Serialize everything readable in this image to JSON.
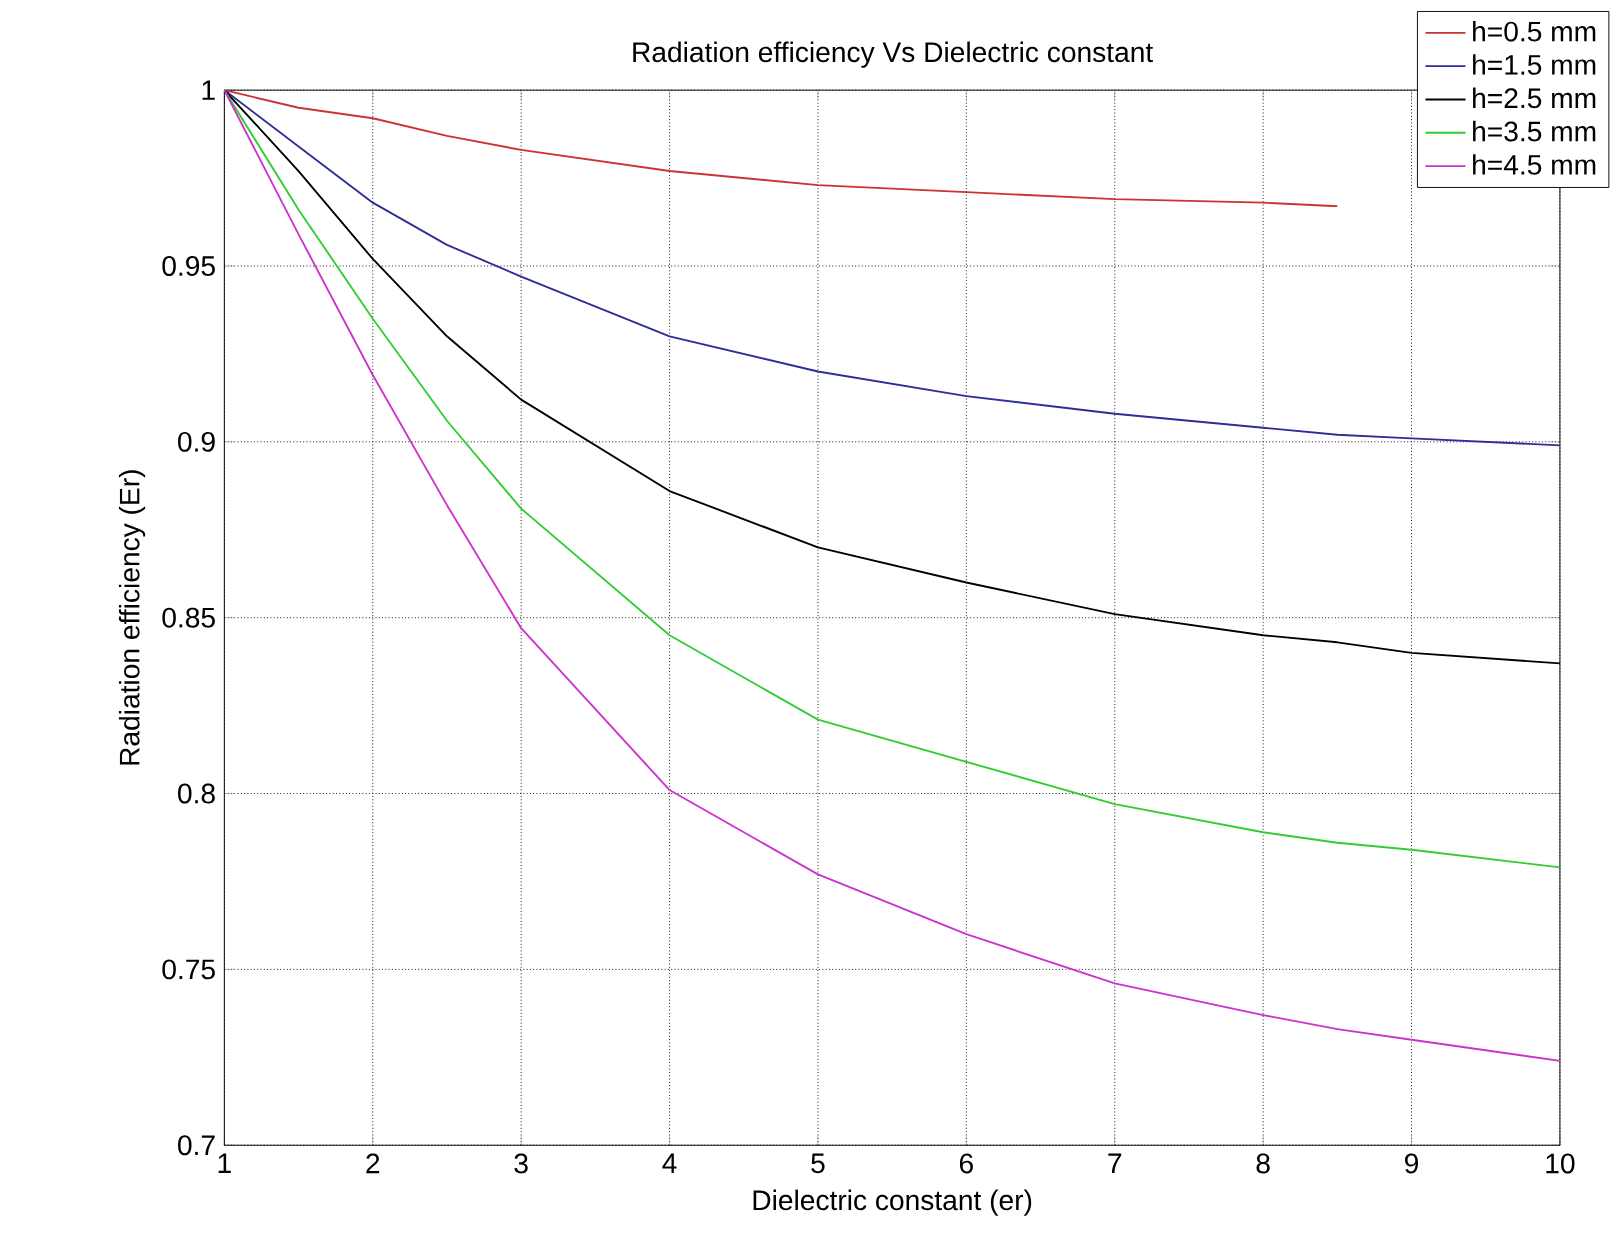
{
  "chart_data": {
    "type": "line",
    "title": "Radiation efficiency  Vs Dielectric constant",
    "xlabel": "Dielectric constant (er)",
    "ylabel": "Radiation efficiency (Er)",
    "x": [
      1,
      1.5,
      2,
      2.5,
      3,
      4,
      5,
      6,
      7,
      8,
      8.5,
      9,
      10
    ],
    "series": [
      {
        "name": "h=0.5 mm",
        "color": "#cc3333",
        "values": [
          1,
          0.995,
          0.992,
          0.987,
          0.983,
          0.977,
          0.973,
          0.971,
          0.969,
          0.968,
          0.967,
          null,
          null
        ]
      },
      {
        "name": "h=1.5 mm",
        "color": "#2e2e99",
        "values": [
          1,
          0.984,
          0.968,
          0.956,
          0.947,
          0.93,
          0.92,
          0.913,
          0.908,
          0.904,
          0.902,
          0.901,
          0.899
        ]
      },
      {
        "name": "h=2.5 mm",
        "color": "#000000",
        "values": [
          1,
          0.977,
          0.952,
          0.93,
          0.912,
          0.886,
          0.87,
          0.86,
          0.851,
          0.845,
          0.843,
          0.84,
          0.837
        ]
      },
      {
        "name": "h=3.5 mm",
        "color": "#33cc33",
        "values": [
          1,
          0.966,
          0.935,
          0.906,
          0.881,
          0.845,
          0.821,
          0.809,
          0.797,
          0.789,
          0.786,
          0.784,
          0.779
        ]
      },
      {
        "name": "h=4.5 mm",
        "color": "#cc33cc",
        "values": [
          1,
          0.959,
          0.919,
          0.882,
          0.847,
          0.801,
          0.777,
          0.76,
          0.746,
          0.737,
          0.733,
          0.73,
          0.724
        ]
      }
    ],
    "xlim": [
      1,
      10
    ],
    "ylim": [
      0.7,
      1
    ],
    "xticks": [
      1,
      2,
      3,
      4,
      5,
      6,
      7,
      8,
      9,
      10
    ],
    "yticks": [
      0.7,
      0.75,
      0.8,
      0.85,
      0.9,
      0.95,
      1
    ],
    "grid": true,
    "legend": "top right",
    "marker": "none",
    "line_style": "solid"
  }
}
